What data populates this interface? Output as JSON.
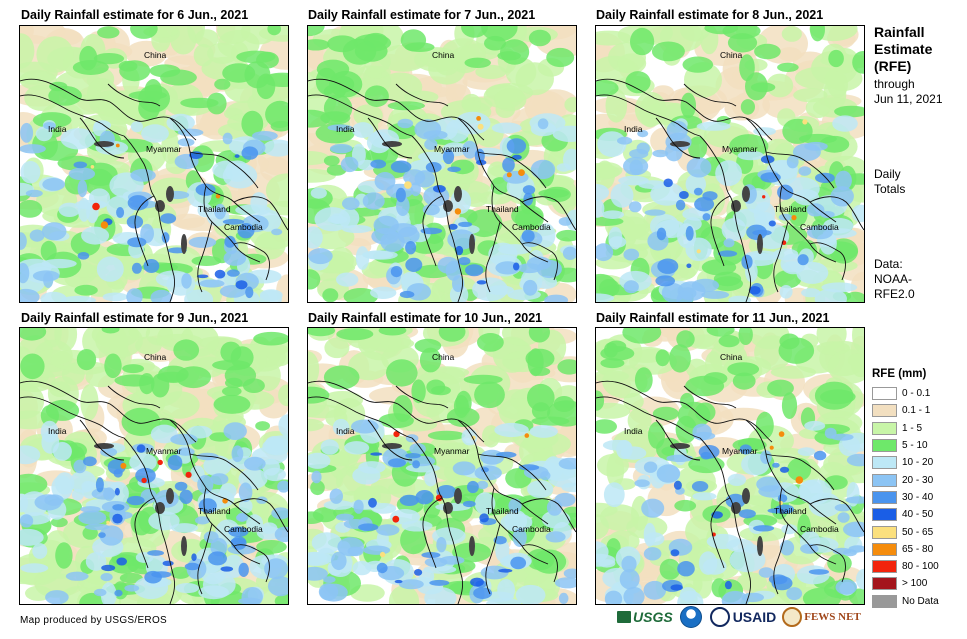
{
  "panels": [
    {
      "title": "Daily Rainfall estimate for 6 Jun., 2021"
    },
    {
      "title": "Daily Rainfall estimate for 7 Jun., 2021"
    },
    {
      "title": "Daily Rainfall estimate for 8 Jun., 2021"
    },
    {
      "title": "Daily Rainfall estimate for 9 Jun., 2021"
    },
    {
      "title": "Daily Rainfall estimate for 10 Jun., 2021"
    },
    {
      "title": "Daily Rainfall estimate for 11 Jun., 2021"
    }
  ],
  "map_labels": {
    "china": "China",
    "india": "India",
    "myanmar": "Myanmar",
    "thailand": "Thailand",
    "cambodia": "Cambodia"
  },
  "sidebar": {
    "title_line1": "Rainfall",
    "title_line2": "Estimate",
    "title_line3": "(RFE)",
    "through_line1": "through",
    "through_line2": "Jun 11, 2021",
    "totals_line1": "Daily",
    "totals_line2": "Totals",
    "source_line1": "Data:",
    "source_line2": "NOAA-",
    "source_line3": "RFE2.0"
  },
  "legend": {
    "title": "RFE (mm)",
    "items": [
      {
        "label": "0 - 0.1",
        "color": "#ffffff"
      },
      {
        "label": "0.1 - 1",
        "color": "#f2dfc0"
      },
      {
        "label": "1 - 5",
        "color": "#c8f5a8"
      },
      {
        "label": "5 - 10",
        "color": "#6ee86a"
      },
      {
        "label": "10 - 20",
        "color": "#bde8f6"
      },
      {
        "label": "20 - 30",
        "color": "#8cc4f4"
      },
      {
        "label": "30 - 40",
        "color": "#4a94ee"
      },
      {
        "label": "40 - 50",
        "color": "#1a5ee6"
      },
      {
        "label": "50 - 65",
        "color": "#fbe07e"
      },
      {
        "label": "65 - 80",
        "color": "#f58c0c"
      },
      {
        "label": "80 - 100",
        "color": "#f2240c"
      },
      {
        "label": "> 100",
        "color": "#a4151c"
      },
      {
        "label": "No Data",
        "color": "#999999"
      }
    ]
  },
  "footer": {
    "credit": "Map produced by USGS/EROS",
    "logo_usgs": "USGS",
    "logo_usaid": "USAID",
    "logo_fewsnet": "FEWS NET"
  }
}
